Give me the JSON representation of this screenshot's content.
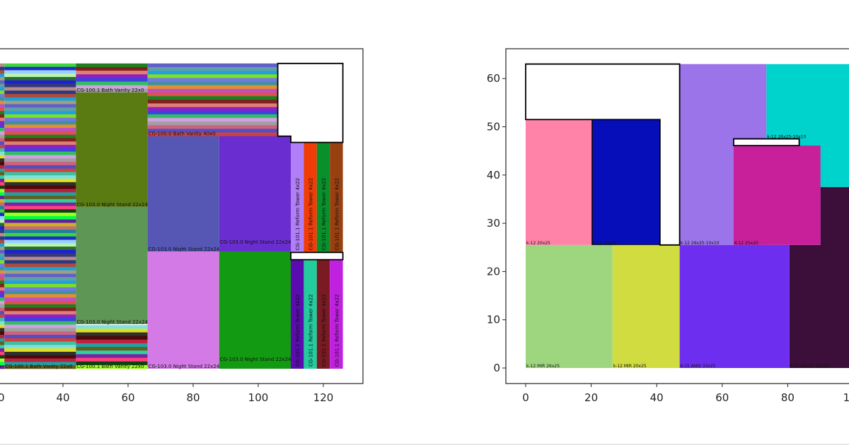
{
  "chart_data": [
    {
      "type": "rectangle-packing",
      "xlim": [
        -6,
        132
      ],
      "ylim": [
        -3.2,
        66.2
      ],
      "xticks": [
        20,
        40,
        60,
        80,
        100,
        120
      ],
      "yticks": [],
      "strip_palette": [
        "#3fd63a",
        "#1a2fc8",
        "#9ad0ff",
        "#b7f5b0",
        "#2b6b2b",
        "#1f1fd8",
        "#333a7a",
        "#b88a8a",
        "#2a3a80",
        "#b04a3a",
        "#1da0d8",
        "#a0a080",
        "#6060c8",
        "#60a0a0",
        "#20a0e0",
        "#80e020",
        "#707ae0",
        "#4090a0",
        "#e09030",
        "#c050c0",
        "#e05050",
        "#208020",
        "#802020",
        "#e08070",
        "#9020c0",
        "#4040e0",
        "#30c060",
        "#d0a0e0",
        "#a0a0a0",
        "#d06080",
        "#5050c0",
        "#d04040",
        "#40c0a0",
        "#80e0e0",
        "#e0e020",
        "#303030",
        "#4a0a0a",
        "#c02040",
        "#20a0a0",
        "#606020",
        "#30d0a0",
        "#8020a0",
        "#ff4080",
        "#104010",
        "#a0ff20",
        "#00ff40",
        "#6020a0",
        "#d0b020",
        "#c07070",
        "#2080a0"
      ],
      "strip_groups": [
        {
          "label": "CG-100.1 Bath Vanity 22x0",
          "x": 0,
          "w": 22,
          "y0": 0,
          "y1": 63,
          "count": 90,
          "offset": 7
        },
        {
          "label": "CG-100.1 Bath Vanity 22x0",
          "x": 22,
          "w": 22,
          "y0": 0,
          "y1": 63,
          "count": 90,
          "offset": 0
        },
        {
          "label": "CG-100.1 Bath Vanity 22x0",
          "x": 44,
          "w": 22,
          "y0": 57,
          "y1": 63,
          "count": 8,
          "offset": 21
        },
        {
          "label": "CG-100.1 Bath Vanity 22x0",
          "x": 44,
          "w": 22,
          "y0": 0,
          "y1": 9,
          "count": 12,
          "offset": 33
        },
        {
          "label": "CG-100.0 Bath Vanity 40x0",
          "x": 66,
          "w": 40,
          "y0": 48,
          "y1": 63,
          "count": 20,
          "offset": 12
        }
      ],
      "rects": [
        {
          "label": "CG-103.0 Night Stand 22x24",
          "x": 44,
          "y": 33.4,
          "w": 22,
          "h": 23.6,
          "color": "#5a7a12"
        },
        {
          "label": "CG-103.0 Night Stand 22x24",
          "x": 44,
          "y": 9.2,
          "w": 22,
          "h": 24.2,
          "color": "#5e9656"
        },
        {
          "label": "CG-103.0 Night Stand 22x24",
          "x": 66,
          "y": 24.2,
          "w": 22,
          "h": 23.8,
          "color": "#5656b4"
        },
        {
          "label": "CG-103.0 Night Stand 22x24",
          "x": 88,
          "y": 24.2,
          "w": 22,
          "h": 23.8,
          "color": "#6a2ed0"
        },
        {
          "label": "CG-103.0 Night Stand 22x24",
          "x": 66,
          "y": 0,
          "w": 22,
          "h": 24.2,
          "color": "#d47ae6"
        },
        {
          "label": "CG-103.0 Night Stand 22x24",
          "x": 88,
          "y": 0,
          "w": 22,
          "h": 24.2,
          "color": "#129a12"
        },
        {
          "label": "CG-101.1 Reform Tower 4x22",
          "x": 110,
          "y": 24,
          "w": 4,
          "h": 22.7,
          "color": "#b07ef6",
          "vertical": true
        },
        {
          "label": "CG-101.1 Reform Tower 4x22",
          "x": 114,
          "y": 24,
          "w": 4,
          "h": 22.7,
          "color": "#f03c06",
          "vertical": true
        },
        {
          "label": "CG-101.1 Reform Tower 4x22",
          "x": 118,
          "y": 24,
          "w": 4,
          "h": 22.7,
          "color": "#08902a",
          "vertical": true
        },
        {
          "label": "CG-101.1 Reform Tower 4x22",
          "x": 122,
          "y": 24,
          "w": 4,
          "h": 22.7,
          "color": "#984010",
          "vertical": true
        },
        {
          "label": "CG-101.1 Reform Tower 4x22",
          "x": 110,
          "y": 0,
          "w": 4,
          "h": 22.5,
          "color": "#5a0cb0",
          "vertical": true
        },
        {
          "label": "CG-101.1 Reform Tower 4x22",
          "x": 114,
          "y": 0,
          "w": 4,
          "h": 22.5,
          "color": "#22cc9c",
          "vertical": true
        },
        {
          "label": "CG-101.1 Reform Tower 4x22",
          "x": 118,
          "y": 0,
          "w": 4,
          "h": 22.5,
          "color": "#7a1a22",
          "vertical": true
        },
        {
          "label": "CG-101.1 Reform Tower 4x22",
          "x": 122,
          "y": 0,
          "w": 4,
          "h": 22.5,
          "color": "#c020e0",
          "vertical": true
        }
      ],
      "waste_regions": [
        {
          "points": [
            [
              106,
              63
            ],
            [
              126,
              63
            ],
            [
              126,
              46.7
            ],
            [
              110,
              46.7
            ],
            [
              110,
              48
            ],
            [
              106,
              48
            ]
          ]
        },
        {
          "points": [
            [
              110,
              22.5
            ],
            [
              126,
              22.5
            ],
            [
              126,
              24
            ],
            [
              110,
              24
            ]
          ]
        }
      ]
    },
    {
      "type": "rectangle-packing",
      "xlim": [
        -6,
        132
      ],
      "ylim": [
        -3.2,
        66.2
      ],
      "xticks": [
        0,
        20,
        40,
        60,
        80,
        100
      ],
      "yticks": [
        0,
        10,
        20,
        30,
        40,
        50,
        60
      ],
      "rects": [
        {
          "label": "k-12 26x25-10x10",
          "x": 47,
          "y": 25.5,
          "w": 26.5,
          "h": 37.5,
          "color": "#9a74e8"
        },
        {
          "label": "k-12 26x25-10x10",
          "poly": [
            [
              73.5,
              63
            ],
            [
              132,
              63
            ],
            [
              132,
              37.5
            ],
            [
              83.5,
              37.5
            ],
            [
              83.5,
              47.5
            ],
            [
              73.5,
              47.5
            ]
          ],
          "lx": 73.5,
          "ly": 47.5,
          "color": "#00d2cc"
        },
        {
          "label": "K-12 25x20",
          "x": 63.5,
          "y": 25.5,
          "w": 26.5,
          "h": 20.6,
          "color": "#c8209a"
        },
        {
          "label": "K-12 26x25-10x10",
          "poly": [
            [
              80.5,
              0
            ],
            [
              132,
              0
            ],
            [
              132,
              37.5
            ],
            [
              90,
              37.5
            ],
            [
              90,
              25.5
            ],
            [
              80.5,
              25.5
            ]
          ],
          "lx": 80.5,
          "ly": 0,
          "color": "#3c0e3a"
        },
        {
          "label": "k-12 20x25",
          "x": 0,
          "y": 25.5,
          "w": 20.3,
          "h": 26,
          "color": "#ff82a8"
        },
        {
          "label": "k-12 20x25",
          "x": 20.3,
          "y": 25.5,
          "w": 20.7,
          "h": 26,
          "color": "#060eba",
          "outlined": true
        },
        {
          "label": "k-12 MIR 26x25",
          "x": 0,
          "y": 0,
          "w": 26.5,
          "h": 25.5,
          "color": "#9ed680"
        },
        {
          "label": "k-12 MIR 20x25",
          "x": 26.5,
          "y": 0,
          "w": 20.5,
          "h": 25.5,
          "color": "#d0dc40"
        },
        {
          "label": "K-15 ANSI 33x25",
          "x": 47,
          "y": 0,
          "w": 33.5,
          "h": 25.5,
          "color": "#6e2ef0"
        }
      ],
      "waste_regions": [
        {
          "points": [
            [
              0,
              63
            ],
            [
              47,
              63
            ],
            [
              47,
              25.5
            ],
            [
              41,
              25.5
            ],
            [
              41,
              51.5
            ],
            [
              0,
              51.5
            ]
          ]
        },
        {
          "points": [
            [
              63.5,
              46.1
            ],
            [
              83.5,
              46.1
            ],
            [
              83.5,
              47.5
            ],
            [
              63.5,
              47.5
            ]
          ]
        }
      ]
    }
  ]
}
